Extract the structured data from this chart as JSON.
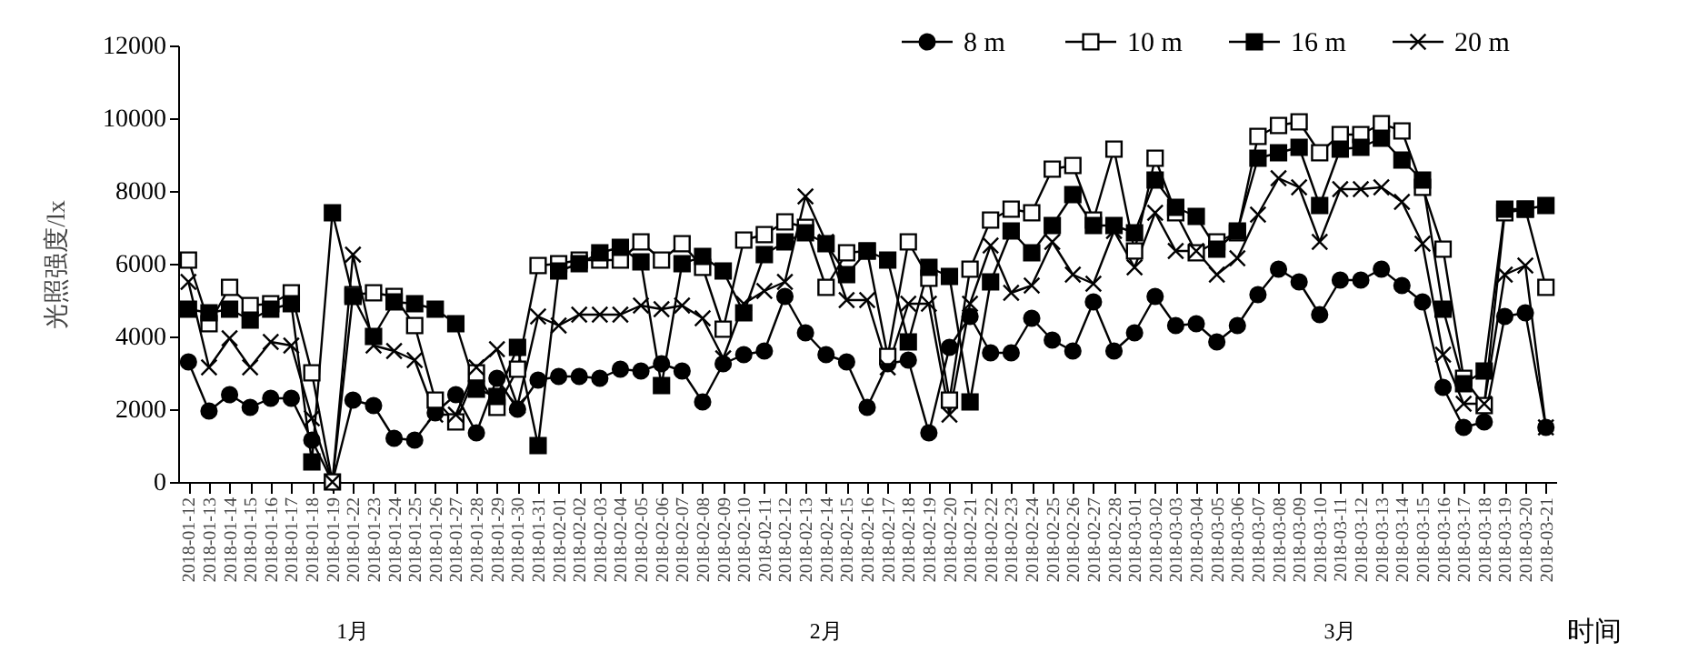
{
  "chart_data": {
    "type": "line",
    "xlabel": "时间",
    "ylabel": "光照强度/lx",
    "legend": "top right",
    "grid": false,
    "categories": [
      "2018-01-12",
      "2018-01-13",
      "2018-01-14",
      "2018-01-15",
      "2018-01-16",
      "2018-01-17",
      "2018-01-18",
      "2018-01-19",
      "2018-01-22",
      "2018-01-23",
      "2018-01-24",
      "2018-01-25",
      "2018-01-26",
      "2018-01-27",
      "2018-01-28",
      "2018-01-29",
      "2018-01-30",
      "2018-01-31",
      "2018-02-01",
      "2018-02-02",
      "2018-02-03",
      "2018-02-04",
      "2018-02-05",
      "2018-02-06",
      "2018-02-07",
      "2018-02-08",
      "2018-02-09",
      "2018-02-10",
      "2018-02-11",
      "2018-02-12",
      "2018-02-13",
      "2018-02-14",
      "2018-02-15",
      "2018-02-16",
      "2018-02-17",
      "2018-02-18",
      "2018-02-19",
      "2018-02-20",
      "2018-02-21",
      "2018-02-22",
      "2018-02-23",
      "2018-02-24",
      "2018-02-25",
      "2018-02-26",
      "2018-02-27",
      "2018-02-28",
      "2018-03-01",
      "2018-03-02",
      "2018-03-03",
      "2018-03-04",
      "2018-03-05",
      "2018-03-06",
      "2018-03-07",
      "2018-03-08",
      "2018-03-09",
      "2018-03-10",
      "2018-03-11",
      "2018-03-12",
      "2018-03-13",
      "2018-03-14",
      "2018-03-15",
      "2018-03-16",
      "2018-03-17",
      "2018-03-18",
      "2018-03-19",
      "2018-03-20",
      "2018-03-21"
    ],
    "ylim": [
      0,
      12000
    ],
    "yticks": [
      0,
      2000,
      4000,
      6000,
      8000,
      10000,
      12000
    ],
    "annotations": [
      "1月",
      "2月",
      "3月"
    ],
    "series": [
      {
        "name": "8 m",
        "color": "#000000",
        "marker": "circle",
        "values": [
          3300,
          1950,
          2400,
          2050,
          2300,
          2300,
          1150,
          0,
          2250,
          2100,
          1200,
          1150,
          1900,
          2400,
          1350,
          2850,
          2000,
          2800,
          2900,
          2900,
          2850,
          3100,
          3050,
          3250,
          3050,
          2200,
          3250,
          3500,
          3600,
          5100,
          4100,
          3500,
          3300,
          2050,
          3250,
          3350,
          1350,
          3700,
          4550,
          3550,
          3550,
          4500,
          3900,
          3600,
          4950,
          3600,
          4100,
          5100,
          4300,
          4350,
          3850,
          4300,
          5150,
          5850,
          5500,
          4600,
          5550,
          5550,
          5850,
          5400,
          4950,
          2600,
          1500,
          1650,
          4550,
          4650,
          1500
        ]
      },
      {
        "name": "10 m",
        "color": "#000000",
        "marker": "square",
        "colors": [
          "#ffffff",
          "#ffffff",
          "#ffffff",
          "#ffffff",
          "#ffffff",
          "#ffffff",
          "#ffffff",
          "#ffffff",
          "#ffffff",
          "#ffffff",
          "#ffffff",
          "#ffffff",
          "#ffffff",
          "#ffffff",
          "#ffffff",
          "#ffffff",
          "#ffffff",
          "#ffffff",
          "#ffffff",
          "#ffffff",
          "#ffffff",
          "#ffffff",
          "#ffffff",
          "#ffffff",
          "#ffffff",
          "#ffffff",
          "#ffffff",
          "#ffffff",
          "#ffffff",
          "#ffffff",
          "#ffffff",
          "#ffffff",
          "#ffffff",
          "#ffffff",
          "#ffffff",
          "#ffffff",
          "#ffffff",
          "#ffffff",
          "#ffffff",
          "#ffffff",
          "#ffffff",
          "#ffffff",
          "#ffffff",
          "#ffffff",
          "#ffffff",
          "#ffffff",
          "#ffffff",
          "#ffffff",
          "#ffffff",
          "#ffffff",
          "#ffffff",
          "#ffffff",
          "#ffffff",
          "#ffffff",
          "#ffffff",
          "#ffffff",
          "#ffffff",
          "#ffffff",
          "#ffffff",
          "#ffffff",
          "#ffffff",
          "#ffffff",
          "#ffffff",
          "#ffffff",
          "#ffffff",
          "#ffffff",
          "#ffffff"
        ],
        "values": [
          6100,
          4350,
          5350,
          4850,
          4900,
          5200,
          3000,
          0,
          5150,
          5200,
          5100,
          4300,
          2250,
          1650,
          3000,
          2050,
          3100,
          5950,
          6000,
          6100,
          6100,
          6100,
          6600,
          6100,
          6550,
          5900,
          4200,
          6650,
          6800,
          7150,
          7000,
          5350,
          6300,
          6350,
          3450,
          6600,
          5600,
          2250,
          5850,
          7200,
          7500,
          7400,
          8600,
          8700,
          7200,
          9150,
          6350,
          8900,
          7400,
          6300,
          6600,
          6850,
          9500,
          9800,
          9900,
          9050,
          9550,
          9550,
          9850,
          9650,
          8100,
          6400,
          2850,
          2100,
          7400,
          7500,
          5350
        ]
      },
      {
        "name": "16 m",
        "color": "#000000",
        "marker": "square",
        "values": [
          4750,
          4650,
          4750,
          4450,
          4750,
          4900,
          550,
          7400,
          5100,
          4000,
          4950,
          4900,
          4750,
          4350,
          2550,
          2350,
          3700,
          1000,
          5800,
          6000,
          6300,
          6450,
          6050,
          2650,
          6000,
          6200,
          5800,
          4650,
          6250,
          6600,
          6850,
          6550,
          5700,
          6350,
          6100,
          3850,
          5900,
          5650,
          2200,
          5500,
          6900,
          6300,
          7050,
          7900,
          7050,
          7050,
          6850,
          8300,
          7550,
          7300,
          6400,
          6900,
          8900,
          9050,
          9200,
          7600,
          9150,
          9200,
          9450,
          8850,
          8300,
          4750,
          2700,
          3050,
          7500,
          7500,
          7600
        ]
      },
      {
        "name": "20 m",
        "color": "#000000",
        "marker": "cross",
        "values": [
          5500,
          3150,
          3950,
          3150,
          3850,
          3750,
          1750,
          0,
          6250,
          3750,
          3600,
          3350,
          1850,
          1850,
          3150,
          3650,
          2100,
          4550,
          4300,
          4600,
          4600,
          4600,
          4850,
          4750,
          4850,
          4500,
          3400,
          4900,
          5250,
          5500,
          7850,
          6600,
          5000,
          5000,
          3150,
          4900,
          4900,
          1850,
          4900,
          6500,
          5200,
          5400,
          6600,
          5700,
          5450,
          6900,
          5900,
          7400,
          6350,
          6350,
          5700,
          6150,
          7350,
          8350,
          8100,
          6600,
          8050,
          8050,
          8100,
          7700,
          6550,
          3500,
          2150,
          2150,
          5700,
          5950,
          1500
        ]
      }
    ]
  }
}
